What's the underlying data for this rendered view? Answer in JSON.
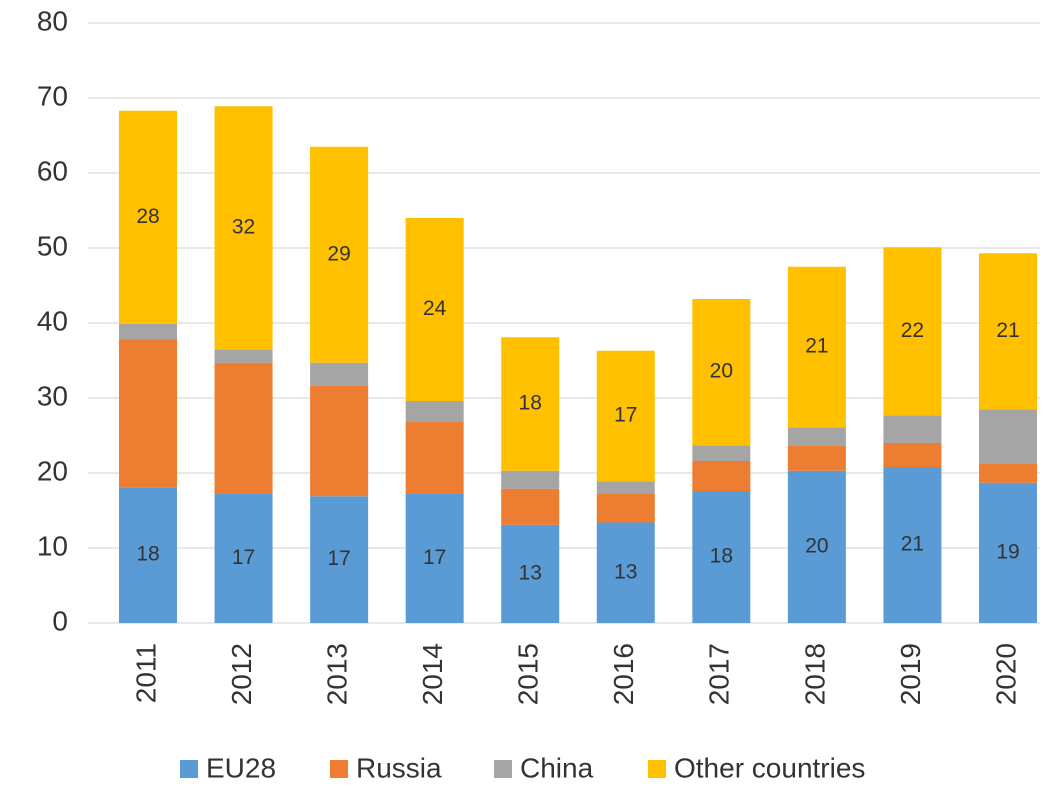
{
  "chart_data": {
    "type": "stacked-bar",
    "categories": [
      "2011",
      "2012",
      "2013",
      "2014",
      "2015",
      "2016",
      "2017",
      "2018",
      "2019",
      "2020"
    ],
    "series": [
      {
        "name": "EU28",
        "color": "#5b9bd5",
        "values": [
          18.1,
          17.2,
          16.9,
          17.2,
          13.1,
          13.4,
          17.6,
          20.3,
          20.8,
          18.7
        ],
        "value_labels": [
          "18",
          "17",
          "17",
          "17",
          "13",
          "13",
          "18",
          "20",
          "21",
          "19"
        ]
      },
      {
        "name": "Russia",
        "color": "#ed7d31",
        "values": [
          19.7,
          17.5,
          14.8,
          9.7,
          4.8,
          3.8,
          4.0,
          3.4,
          3.2,
          2.6
        ]
      },
      {
        "name": "China",
        "color": "#a5a5a5",
        "values": [
          2.1,
          1.8,
          3.0,
          2.7,
          2.4,
          1.7,
          2.1,
          2.4,
          3.7,
          7.2
        ]
      },
      {
        "name": "Other countries",
        "color": "#ffc000",
        "values": [
          28.4,
          32.4,
          28.8,
          24.4,
          17.8,
          17.4,
          19.5,
          21.4,
          22.4,
          20.8
        ],
        "value_labels": [
          "28",
          "32",
          "29",
          "24",
          "18",
          "17",
          "20",
          "21",
          "22",
          "21"
        ]
      }
    ],
    "ylim": [
      0,
      80
    ],
    "yticks": [
      0,
      10,
      20,
      30,
      40,
      50,
      60,
      70,
      80
    ],
    "grid": true,
    "legend": "bottom"
  }
}
